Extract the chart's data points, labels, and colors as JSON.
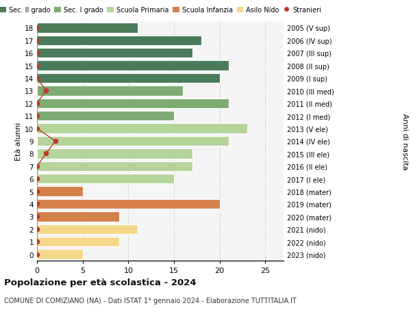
{
  "ages": [
    18,
    17,
    16,
    15,
    14,
    13,
    12,
    11,
    10,
    9,
    8,
    7,
    6,
    5,
    4,
    3,
    2,
    1,
    0
  ],
  "right_labels": [
    "2005 (V sup)",
    "2006 (IV sup)",
    "2007 (III sup)",
    "2008 (II sup)",
    "2009 (I sup)",
    "2010 (III med)",
    "2011 (II med)",
    "2012 (I med)",
    "2013 (V ele)",
    "2014 (IV ele)",
    "2015 (III ele)",
    "2016 (II ele)",
    "2017 (I ele)",
    "2018 (mater)",
    "2019 (mater)",
    "2020 (mater)",
    "2021 (nido)",
    "2022 (nido)",
    "2023 (nido)"
  ],
  "bar_values": [
    11,
    18,
    17,
    21,
    20,
    16,
    21,
    15,
    23,
    21,
    17,
    17,
    15,
    5,
    20,
    9,
    11,
    9,
    5
  ],
  "bar_colors": [
    "#4a7c59",
    "#4a7c59",
    "#4a7c59",
    "#4a7c59",
    "#4a7c59",
    "#7dab72",
    "#7dab72",
    "#7dab72",
    "#b5d49a",
    "#b5d49a",
    "#b5d49a",
    "#b5d49a",
    "#b5d49a",
    "#d4804a",
    "#d4804a",
    "#d4804a",
    "#f5d88c",
    "#f5d88c",
    "#f5d88c"
  ],
  "stranieri_values": [
    0,
    0,
    0,
    0,
    0,
    1,
    0,
    0,
    0,
    2,
    1,
    0,
    0,
    0,
    0,
    0,
    0,
    0,
    0
  ],
  "legend_labels": [
    "Sec. II grado",
    "Sec. I grado",
    "Scuola Primaria",
    "Scuola Infanzia",
    "Asilo Nido",
    "Stranieri"
  ],
  "legend_colors": [
    "#4a7c59",
    "#7dab72",
    "#b5d49a",
    "#d4804a",
    "#f5d88c",
    "#c0392b"
  ],
  "title": "Popolazione per età scolastica - 2024",
  "subtitle": "COMUNE DI COMIZIANO (NA) - Dati ISTAT 1° gennaio 2024 - Elaborazione TUTTITALIA.IT",
  "ylabel_left": "Età alunni",
  "ylabel_right": "Anni di nascita",
  "xlim": [
    0,
    27
  ],
  "xticks": [
    0,
    5,
    10,
    15,
    20,
    25
  ],
  "bg_color": "#f5f5f5",
  "grid_color": "#cccccc"
}
